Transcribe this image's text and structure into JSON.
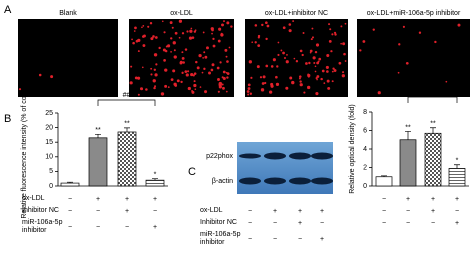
{
  "panel_a": {
    "label": "A",
    "images": [
      {
        "title": "Blank"
      },
      {
        "title": "ox-LDL"
      },
      {
        "title": "ox-LDL+inhibitor NC"
      },
      {
        "title": "ox-LDL+miR-106a-5p inhibitor"
      }
    ]
  },
  "panel_c": {
    "label": "C",
    "blot_rows": [
      "p22phox",
      "β-actin"
    ]
  },
  "chart_data": [
    {
      "type": "bar",
      "label": "B",
      "ylabel": "Relative fluorescence intensity (% of control)",
      "values": [
        1,
        16.5,
        18.5,
        2
      ],
      "errors": [
        0.3,
        1.2,
        1.4,
        0.5
      ],
      "ylim": [
        0,
        25
      ],
      "yticks": [
        0,
        5,
        10,
        15,
        20,
        25
      ],
      "significance": [
        null,
        "**",
        "**",
        "*"
      ],
      "bracket_label": "##",
      "conditions": [
        {
          "label": "ox-LDL",
          "signs": [
            "−",
            "+",
            "+",
            "+"
          ]
        },
        {
          "label": "Inhibitor NC",
          "signs": [
            "−",
            "−",
            "+",
            "−"
          ]
        },
        {
          "label": "miR-106a-5p inhibitor",
          "signs": [
            "−",
            "−",
            "−",
            "+"
          ]
        }
      ]
    },
    {
      "type": "bar",
      "ylabel": "Relative optical density (fold)",
      "values": [
        1,
        5,
        5.7,
        1.9
      ],
      "errors": [
        0.1,
        0.9,
        0.6,
        0.4
      ],
      "ylim": [
        0,
        8
      ],
      "yticks": [
        0,
        2,
        4,
        6,
        8
      ],
      "significance": [
        null,
        "**",
        "**",
        "*"
      ],
      "bracket_label": "##",
      "conditions": [
        {
          "signs": [
            "−",
            "+",
            "+",
            "+"
          ]
        },
        {
          "signs": [
            "−",
            "−",
            "+",
            "−"
          ]
        },
        {
          "signs": [
            "−",
            "−",
            "−",
            "+"
          ]
        }
      ]
    }
  ]
}
